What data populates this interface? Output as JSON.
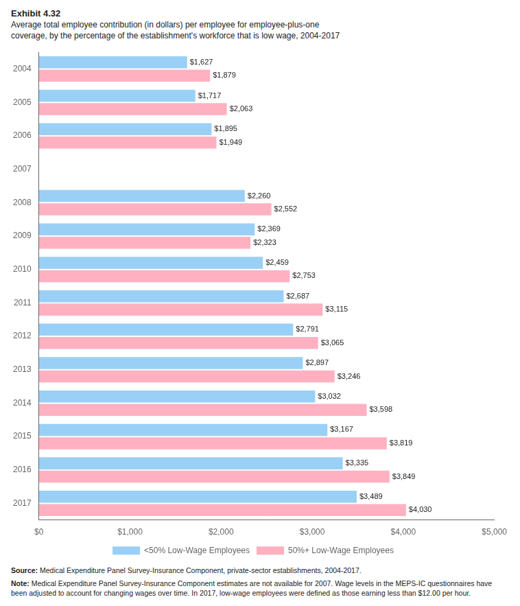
{
  "chart_data": {
    "type": "bar",
    "orientation": "horizontal",
    "title": "Exhibit 4.32",
    "subtitle": "Average total employee contribution (in dollars) per employee for employee-plus-one\ncoverage, by the percentage of the establishment's workforce that is low wage, 2004-2017",
    "annotations": [
      "Source: Medical Expenditure Panel Survey-Insurance Component, private-sector establishments, 2004-2017.",
      "Note: Medical Expenditure Panel Survey-Insurance Component estimates are not available for 2007. Wage levels in the MEPS-IC questionnaires have been adjusted to account for changing wages over time. In 2017, low-wage employees were defined as those earning less than $12.00 per hour."
    ],
    "categories": [
      "2004",
      "2005",
      "2006",
      "2007",
      "2008",
      "2009",
      "2010",
      "2011",
      "2012",
      "2013",
      "2014",
      "2015",
      "2016",
      "2017"
    ],
    "series": [
      {
        "name": "<50% Low-Wage Employees",
        "values": [
          1627,
          1717,
          1895,
          null,
          2260,
          2369,
          2459,
          2687,
          2791,
          2897,
          3032,
          3167,
          3335,
          3489
        ],
        "value_labels": [
          "$1,627",
          "$1,717",
          "$1,895",
          null,
          "$2,260",
          "$2,369",
          "$2,459",
          "$2,687",
          "$2,791",
          "$2,897",
          "$3,032",
          "$3,167",
          "$3,335",
          "$3,489"
        ]
      },
      {
        "name": "50%+ Low-Wage Employees",
        "values": [
          1879,
          2063,
          1949,
          null,
          2552,
          2323,
          2753,
          3115,
          3065,
          3246,
          3598,
          3819,
          3849,
          4030
        ],
        "value_labels": [
          "$1,879",
          "$2,063",
          "$1,949",
          null,
          "$2,552",
          "$2,323",
          "$2,753",
          "$3,115",
          "$3,065",
          "$3,246",
          "$3,598",
          "$3,819",
          "$3,849",
          "$4,030"
        ]
      }
    ],
    "xlim": [
      0,
      5000
    ],
    "xticks": [
      {
        "value": 0,
        "label": "$0"
      },
      {
        "value": 1000,
        "label": "$1,000"
      },
      {
        "value": 2000,
        "label": "$2,000"
      },
      {
        "value": 3000,
        "label": "$3,000"
      },
      {
        "value": 4000,
        "label": "$4,000"
      },
      {
        "value": 5000,
        "label": "$5,000"
      }
    ],
    "grid": false,
    "legend": "bottom",
    "data_labels": true
  }
}
